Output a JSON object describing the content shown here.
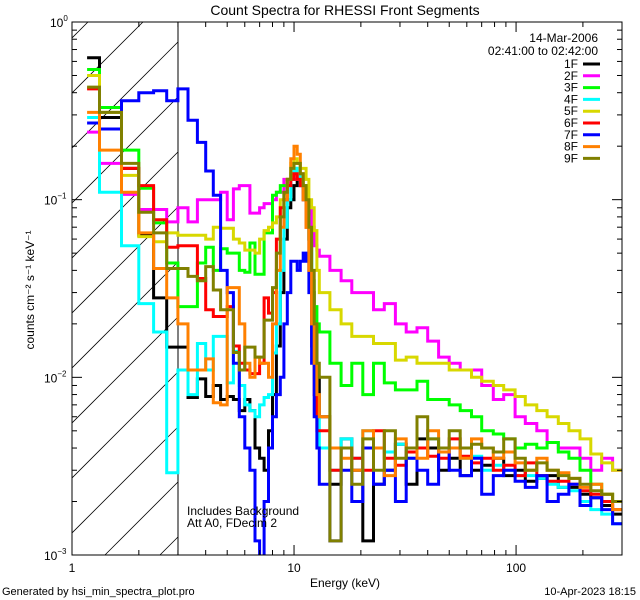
{
  "chart_data": {
    "type": "line",
    "style": "step-histogram",
    "title": "Count Spectra for RHESSI Front Segments",
    "xlabel": "Energy (keV)",
    "ylabel": "counts cm⁻² s⁻¹ keV⁻¹",
    "xscale": "log",
    "yscale": "log",
    "xlim": [
      1,
      300
    ],
    "ylim": [
      0.001,
      1
    ],
    "x_tick_labels": [
      {
        "value": 1,
        "label": "1"
      },
      {
        "value": 10,
        "label": "10"
      },
      {
        "value": 100,
        "label": "100"
      }
    ],
    "y_tick_labels": [
      {
        "value": 1,
        "base": "10",
        "exp": "0"
      },
      {
        "value": 0.1,
        "base": "10",
        "exp": "−1"
      },
      {
        "value": 0.01,
        "base": "10",
        "exp": "−2"
      },
      {
        "value": 0.001,
        "base": "10",
        "exp": "−3"
      }
    ],
    "grid": false,
    "legend_position": "top-right",
    "date": "14-Mar-2006",
    "time_range": "02:41:00 to 02:42:00",
    "annotations": [
      "Includes Background",
      "Att A0, FDecim 2"
    ],
    "excluded_region_keV": [
      1,
      3
    ],
    "bin_edges_keV": [
      1.17,
      1.33,
      1.67,
      2.0,
      2.33,
      2.67,
      3.0,
      3.33,
      3.67,
      4.0,
      4.33,
      4.67,
      5.0,
      5.33,
      5.67,
      6.0,
      6.33,
      6.67,
      7.0,
      7.33,
      7.67,
      8.0,
      8.33,
      8.67,
      9.0,
      9.33,
      9.67,
      10.0,
      10.33,
      10.67,
      11.0,
      11.33,
      11.67,
      12.0,
      12.33,
      12.67,
      13.0,
      14.5,
      16.3,
      18.2,
      20.4,
      22.8,
      25.5,
      28.6,
      32,
      35.8,
      40,
      44.8,
      50,
      56,
      63,
      70,
      79,
      88,
      99,
      110,
      124,
      138,
      155,
      173,
      194,
      217,
      243,
      272,
      300
    ],
    "series": [
      {
        "name": "1F",
        "color": "#000000",
        "values": [
          0.63,
          0.29,
          0.15,
          0.063,
          0.028,
          0.0148,
          0.0148,
          0.0077,
          0.0098,
          0.0078,
          0.009,
          0.0075,
          0.0078,
          0.0075,
          0.0065,
          0.0075,
          0.0065,
          0.004,
          0.0035,
          0.003,
          0.005,
          0.008,
          0.015,
          0.03,
          0.06,
          0.09,
          0.1,
          0.12,
          0.13,
          0.12,
          0.11,
          0.09,
          0.06,
          0.03,
          0.02,
          0.01,
          0.006,
          0.0025,
          0.0045,
          0.003,
          0.0012,
          0.0025,
          0.003,
          0.0042,
          0.0025,
          0.0045,
          0.004,
          0.003,
          0.0035,
          0.0028,
          0.003,
          0.0032,
          0.0035,
          0.0028,
          0.003,
          0.0026,
          0.0027,
          0.0028,
          0.0024,
          0.0024,
          0.0022,
          0.0021,
          0.0019,
          0.0017
        ]
      },
      {
        "name": "2F",
        "color": "#ff00ff",
        "values": [
          0.24,
          0.16,
          0.107,
          0.088,
          0.088,
          0.075,
          0.09,
          0.075,
          0.1,
          0.1,
          0.1,
          0.11,
          0.077,
          0.115,
          0.12,
          0.12,
          0.084,
          0.084,
          0.09,
          0.095,
          0.095,
          0.1,
          0.11,
          0.11,
          0.13,
          0.12,
          0.13,
          0.14,
          0.13,
          0.12,
          0.1,
          0.097,
          0.09,
          0.07,
          0.055,
          0.052,
          0.048,
          0.04,
          0.035,
          0.03,
          0.03,
          0.024,
          0.026,
          0.02,
          0.018,
          0.019,
          0.016,
          0.013,
          0.012,
          0.011,
          0.011,
          0.009,
          0.0075,
          0.008,
          0.006,
          0.0055,
          0.005,
          0.0043,
          0.004,
          0.004,
          0.0035,
          0.003,
          0.0035,
          0.003
        ]
      },
      {
        "name": "3F",
        "color": "#00ff00",
        "values": [
          0.54,
          0.33,
          0.19,
          0.116,
          0.074,
          0.044,
          0.025,
          0.025,
          0.044,
          0.054,
          0.04,
          0.053,
          0.05,
          0.05,
          0.04,
          0.039,
          0.057,
          0.038,
          0.038,
          0.065,
          0.065,
          0.106,
          0.11,
          0.12,
          0.12,
          0.13,
          0.14,
          0.15,
          0.14,
          0.13,
          0.12,
          0.1,
          0.06,
          0.035,
          0.025,
          0.02,
          0.018,
          0.012,
          0.009,
          0.012,
          0.008,
          0.012,
          0.0093,
          0.0085,
          0.0085,
          0.0095,
          0.0075,
          0.0075,
          0.007,
          0.0065,
          0.006,
          0.005,
          0.0048,
          0.0045,
          0.004,
          0.0042,
          0.004,
          0.0043,
          0.0038,
          0.0035,
          0.003,
          0.0025,
          0.0022,
          0.002
        ]
      },
      {
        "name": "4F",
        "color": "#00ffff",
        "values": [
          0.29,
          0.11,
          0.055,
          0.026,
          0.018,
          0.0029,
          0.011,
          0.008,
          0.0155,
          0.011,
          0.017,
          0.017,
          0.0093,
          0.014,
          0.009,
          0.007,
          0.0065,
          0.006,
          0.007,
          0.0077,
          0.008,
          0.0137,
          0.02,
          0.04,
          0.07,
          0.1,
          0.13,
          0.15,
          0.14,
          0.12,
          0.1,
          0.08,
          0.05,
          0.02,
          0.01,
          0.006,
          0.004,
          0.003,
          0.0045,
          0.0035,
          0.005,
          0.004,
          0.0038,
          0.0042,
          0.0035,
          0.004,
          0.0045,
          0.0038,
          0.004,
          0.0035,
          0.0036,
          0.003,
          0.0032,
          0.003,
          0.0028,
          0.0028,
          0.0027,
          0.0025,
          0.0024,
          0.0023,
          0.002,
          0.0018,
          0.0017,
          0.0015
        ]
      },
      {
        "name": "5F",
        "color": "#d8d800",
        "values": [
          0.5,
          0.31,
          0.137,
          0.062,
          0.058,
          0.065,
          0.063,
          0.063,
          0.063,
          0.06,
          0.07,
          0.069,
          0.069,
          0.06,
          0.057,
          0.052,
          0.052,
          0.05,
          0.06,
          0.067,
          0.07,
          0.074,
          0.08,
          0.1,
          0.108,
          0.13,
          0.16,
          0.17,
          0.16,
          0.15,
          0.15,
          0.13,
          0.1,
          0.09,
          0.067,
          0.04,
          0.03,
          0.024,
          0.02,
          0.017,
          0.017,
          0.0155,
          0.0155,
          0.0125,
          0.013,
          0.012,
          0.012,
          0.012,
          0.011,
          0.011,
          0.01,
          0.0095,
          0.009,
          0.0085,
          0.0078,
          0.007,
          0.0065,
          0.006,
          0.0055,
          0.005,
          0.0045,
          0.0037,
          0.0033,
          0.003
        ]
      },
      {
        "name": "6F",
        "color": "#ff0000",
        "values": [
          0.42,
          0.25,
          0.15,
          0.12,
          0.077,
          0.054,
          0.055,
          0.055,
          0.036,
          0.024,
          0.022,
          0.022,
          0.025,
          0.015,
          0.012,
          0.011,
          0.0105,
          0.0105,
          0.012,
          0.028,
          0.023,
          0.03,
          0.06,
          0.09,
          0.1,
          0.12,
          0.13,
          0.14,
          0.13,
          0.12,
          0.1,
          0.07,
          0.04,
          0.015,
          0.008,
          0.005,
          0.005,
          0.003,
          0.004,
          0.0035,
          0.003,
          0.005,
          0.0035,
          0.0032,
          0.0038,
          0.004,
          0.0036,
          0.0035,
          0.0045,
          0.0036,
          0.0033,
          0.0035,
          0.003,
          0.0032,
          0.0028,
          0.0033,
          0.0028,
          0.0026,
          0.0026,
          0.0025,
          0.0023,
          0.0022,
          0.002,
          0.0018
        ]
      },
      {
        "name": "7F",
        "color": "#0000ff",
        "values": [
          0.27,
          0.25,
          0.36,
          0.4,
          0.41,
          0.36,
          0.42,
          0.28,
          0.21,
          0.145,
          0.106,
          0.04,
          0.03,
          0.012,
          0.006,
          0.004,
          0.003,
          0.0012,
          0.0008,
          0.002,
          0.004,
          0.006,
          0.008,
          0.01,
          0.02,
          0.03,
          0.045,
          0.045,
          0.04,
          0.045,
          0.05,
          0.045,
          0.03,
          0.012,
          0.006,
          0.004,
          0.0025,
          0.0012,
          0.003,
          0.002,
          0.004,
          0.0025,
          0.003,
          0.002,
          0.0035,
          0.003,
          0.0025,
          0.004,
          0.003,
          0.0028,
          0.0035,
          0.0022,
          0.0028,
          0.003,
          0.0026,
          0.0024,
          0.0028,
          0.002,
          0.0022,
          0.0025,
          0.0019,
          0.0021,
          0.0018,
          0.0015
        ]
      },
      {
        "name": "8F",
        "color": "#ff8000",
        "values": [
          0.31,
          0.19,
          0.11,
          0.065,
          0.041,
          0.028,
          0.02,
          0.011,
          0.011,
          0.0127,
          0.0072,
          0.007,
          0.032,
          0.032,
          0.02,
          0.012,
          0.01,
          0.013,
          0.012,
          0.012,
          0.01,
          0.02,
          0.04,
          0.07,
          0.1,
          0.13,
          0.17,
          0.2,
          0.18,
          0.14,
          0.1,
          0.07,
          0.04,
          0.02,
          0.012,
          0.008,
          0.006,
          0.004,
          0.0035,
          0.003,
          0.005,
          0.004,
          0.0028,
          0.0045,
          0.004,
          0.0035,
          0.005,
          0.0038,
          0.004,
          0.0035,
          0.0045,
          0.004,
          0.0035,
          0.0038,
          0.0033,
          0.003,
          0.0035,
          0.003,
          0.0029,
          0.0027,
          0.0024,
          0.0025,
          0.0022,
          0.0018
        ]
      },
      {
        "name": "9F",
        "color": "#808000",
        "values": [
          0.43,
          0.31,
          0.16,
          0.085,
          0.065,
          0.041,
          0.041,
          0.037,
          0.035,
          0.042,
          0.031,
          0.024,
          0.024,
          0.0138,
          0.011,
          0.0148,
          0.0148,
          0.013,
          0.013,
          0.021,
          0.021,
          0.032,
          0.05,
          0.08,
          0.11,
          0.13,
          0.15,
          0.16,
          0.16,
          0.14,
          0.12,
          0.1,
          0.07,
          0.04,
          0.02,
          0.012,
          0.01,
          0.0012,
          0.004,
          0.0025,
          0.0045,
          0.003,
          0.005,
          0.0035,
          0.004,
          0.006,
          0.0045,
          0.004,
          0.005,
          0.004,
          0.0042,
          0.004,
          0.0038,
          0.0045,
          0.0035,
          0.003,
          0.0033,
          0.003,
          0.0028,
          0.0027,
          0.0025,
          0.0023,
          0.0022,
          0.002
        ]
      }
    ]
  },
  "footer": {
    "generated_by": "Generated by hsi_min_spectra_plot.pro",
    "timestamp": "10-Apr-2023 18:15"
  }
}
